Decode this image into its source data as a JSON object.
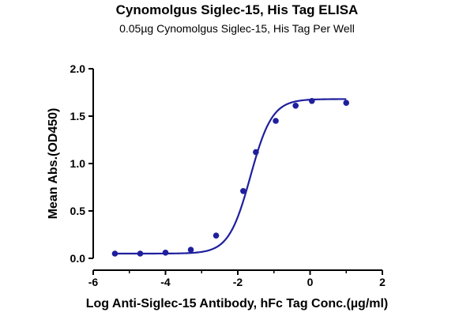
{
  "chart_data": {
    "type": "scatter",
    "title": "Cynomolgus Siglec-15, His Tag ELISA",
    "subtitle": "0.05µg Cynomolgus Siglec-15, His Tag Per Well",
    "xlabel": "Log Anti-Siglec-15 Antibody, hFc Tag Conc.(µg/ml)",
    "ylabel": "Mean Abs.(OD450)",
    "xlim": [
      -6,
      2
    ],
    "ylim": [
      0,
      2.0
    ],
    "xticks": [
      -6,
      -4,
      -2,
      0,
      2
    ],
    "yticks": [
      0.0,
      0.5,
      1.0,
      1.5,
      2.0
    ],
    "xtick_labels": [
      "-6",
      "-4",
      "-2",
      "0",
      "2"
    ],
    "ytick_labels": [
      "0.0",
      "0.5",
      "1.0",
      "1.5",
      "2.0"
    ],
    "grid": false,
    "color": "#1f1f9e",
    "series": [
      {
        "x": [
          -5.4,
          -4.7,
          -4.0,
          -3.3,
          -2.6,
          -1.85,
          -1.5,
          -0.95,
          -0.4,
          0.05,
          1.0
        ],
        "y": [
          0.05,
          0.05,
          0.06,
          0.09,
          0.24,
          0.71,
          1.12,
          1.45,
          1.61,
          1.66,
          1.64
        ]
      }
    ],
    "fit_curve": {
      "model": "4PL",
      "bottom": 0.05,
      "top": 1.68,
      "logEC50": -1.65,
      "hill": 1.45
    }
  }
}
